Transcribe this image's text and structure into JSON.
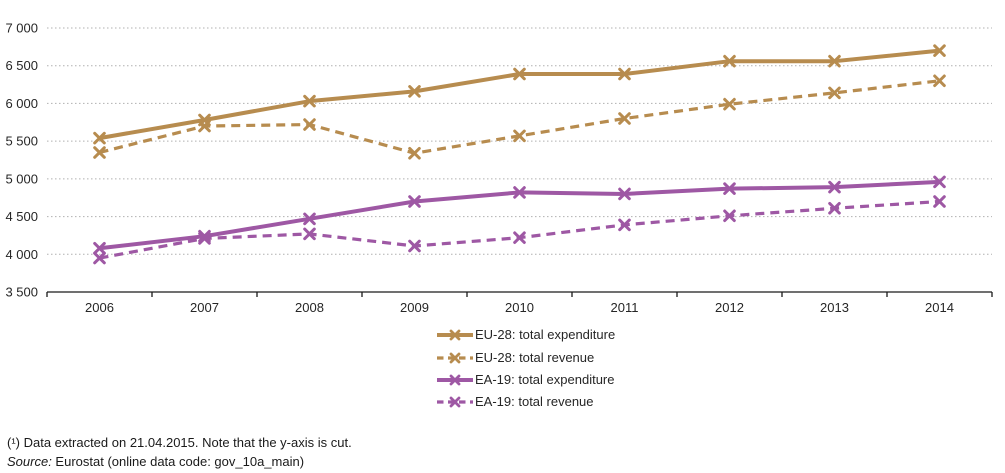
{
  "chart_data": {
    "type": "line",
    "x": [
      "2006",
      "2007",
      "2008",
      "2009",
      "2010",
      "2011",
      "2012",
      "2013",
      "2014"
    ],
    "series": [
      {
        "name": "EU-28: total expenditure",
        "color": "#B78C4F",
        "line": "solid",
        "marker": "x",
        "values": [
          5540,
          5780,
          6030,
          6160,
          6390,
          6390,
          6560,
          6560,
          6700
        ]
      },
      {
        "name": "EU-28: total revenue",
        "color": "#B78C4F",
        "line": "dashed",
        "marker": "x",
        "values": [
          5350,
          5700,
          5720,
          5340,
          5570,
          5800,
          5990,
          6140,
          6300
        ]
      },
      {
        "name": "EA-19: total expenditure",
        "color": "#9E58A4",
        "line": "solid",
        "marker": "x",
        "values": [
          4080,
          4240,
          4470,
          4700,
          4820,
          4800,
          4870,
          4890,
          4960
        ]
      },
      {
        "name": "EA-19: total revenue",
        "color": "#9E58A4",
        "line": "dashed",
        "marker": "x",
        "values": [
          3950,
          4210,
          4270,
          4110,
          4220,
          4390,
          4510,
          4610,
          4700
        ]
      }
    ],
    "ylim": [
      3500,
      7000
    ],
    "ytick_step": 500,
    "ytick_labels": [
      "7 000",
      "6 500",
      "6 000",
      "5 500",
      "5 000",
      "4 500",
      "4 000",
      "3 500"
    ],
    "grid": "horizontal-dotted",
    "grid_color": "#b0b0b0",
    "axis_color": "#1a1a1a",
    "text_color": "#262626",
    "legend_position": "bottom-center"
  },
  "footnote": "(¹) Data extracted on 21.04.2015. Note that the y-axis is cut.",
  "source": {
    "label": "Source:",
    "text": " Eurostat (online data code: gov_10a_main)"
  }
}
